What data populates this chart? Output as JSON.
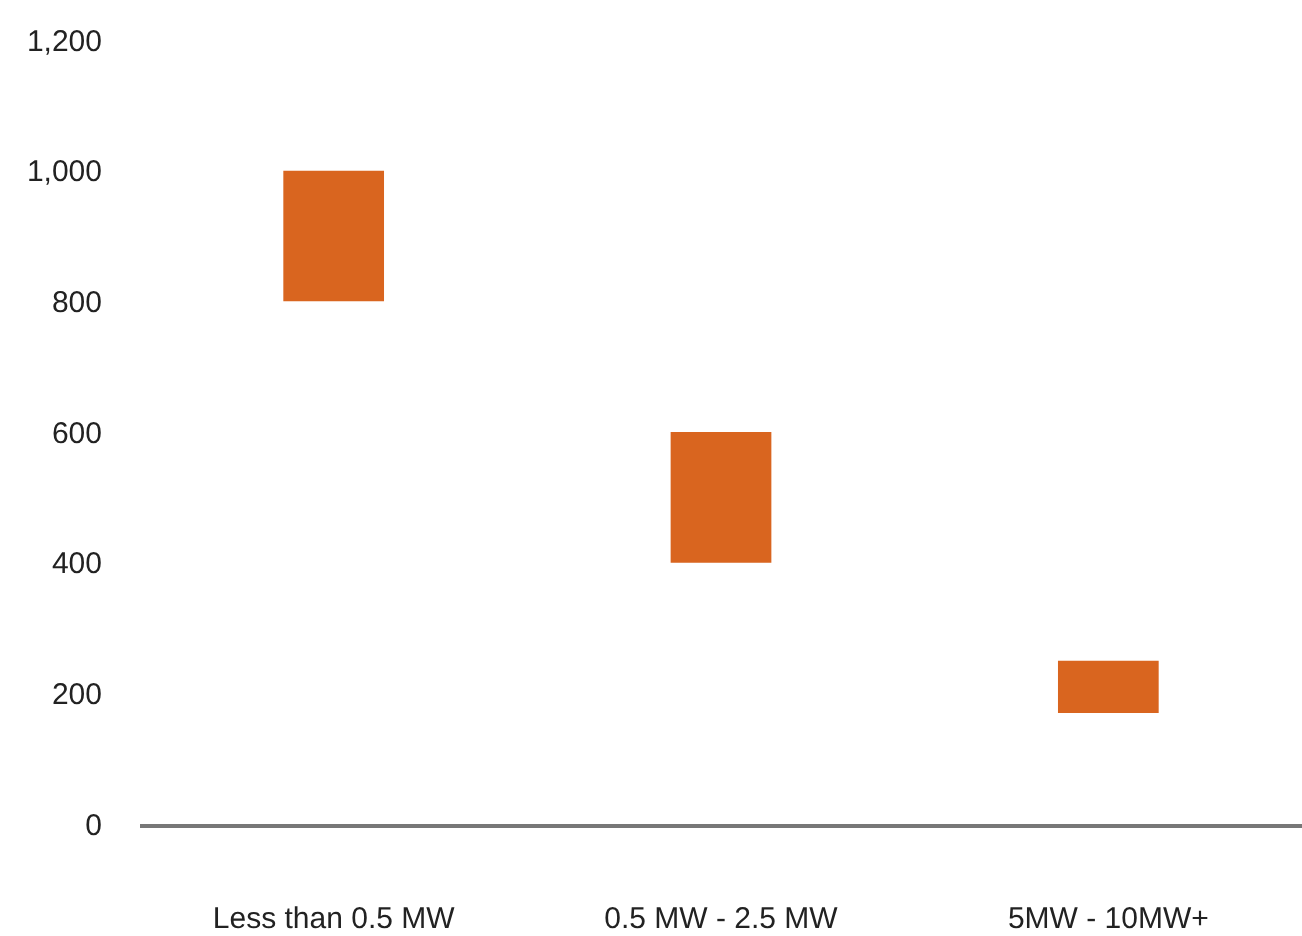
{
  "chart_data": {
    "type": "bar",
    "categories": [
      "Less than 0.5 MW",
      "0.5 MW - 2.5 MW",
      "5MW - 10MW+"
    ],
    "values": [
      200,
      200,
      80
    ],
    "base": [
      800,
      400,
      170
    ],
    "color": "#d9651f",
    "ylim": [
      0,
      1200
    ],
    "yticks": [
      0,
      200,
      400,
      600,
      800,
      {
        "value": 1000,
        "label": "1,000"
      },
      {
        "value": 1200,
        "label": "1,200"
      }
    ],
    "grid": false
  }
}
